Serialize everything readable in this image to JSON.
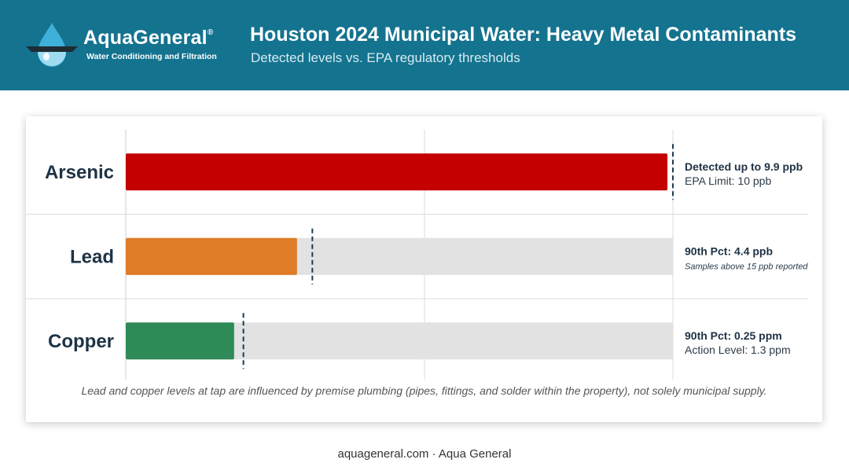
{
  "header": {
    "brand_name": "AquaGeneral",
    "brand_mark": "®",
    "brand_tagline": "Water Conditioning and Filtration",
    "logo_icon": "water-drop-icon"
  },
  "footnote": "Lead and copper levels at tap are influenced by premise plumbing (pipes, fittings, and solder within the property), not solely municipal supply.",
  "footer": "aquageneral.com · Aqua General",
  "colors": {
    "header_bg": "#14738f",
    "arsenic": "#c40000",
    "lead": "#e07b27",
    "copper": "#2e8a57",
    "track": "#e2e2e2",
    "threshold_line": "#1e3a4f"
  },
  "chart_data": {
    "type": "bar",
    "orientation": "horizontal",
    "title": "Houston 2024 Municipal Water: Heavy Metal Contaminants",
    "subtitle": "Detected levels vs. EPA regulatory thresholds",
    "grid": true,
    "categories": [
      "Arsenic",
      "Lead",
      "Copper"
    ],
    "series": [
      {
        "values": [
          {
            "category": "Arsenic",
            "value": 9.9,
            "unit": "ppb",
            "threshold": 10,
            "fraction_of_scale": 0.99,
            "threshold_fraction": 1.0,
            "has_track": false,
            "annotation_main": "Detected up to 9.9 ppb",
            "annotation_sub": "EPA Limit: 10 ppb",
            "sub_italic": false
          },
          {
            "category": "Lead",
            "value": 4.4,
            "unit": "ppb",
            "threshold": 15,
            "fraction_of_scale": 0.313,
            "threshold_fraction": 0.341,
            "has_track": true,
            "annotation_main": "90th Pct: 4.4 ppb",
            "annotation_sub": "Samples above 15 ppb reported",
            "sub_italic": true
          },
          {
            "category": "Copper",
            "value": 0.25,
            "unit": "ppm",
            "threshold": 1.3,
            "fraction_of_scale": 0.198,
            "threshold_fraction": 0.215,
            "has_track": true,
            "annotation_main": "90th Pct: 0.25 ppm",
            "annotation_sub": "Action Level: 1.3 ppm",
            "sub_italic": false
          }
        ]
      }
    ]
  }
}
